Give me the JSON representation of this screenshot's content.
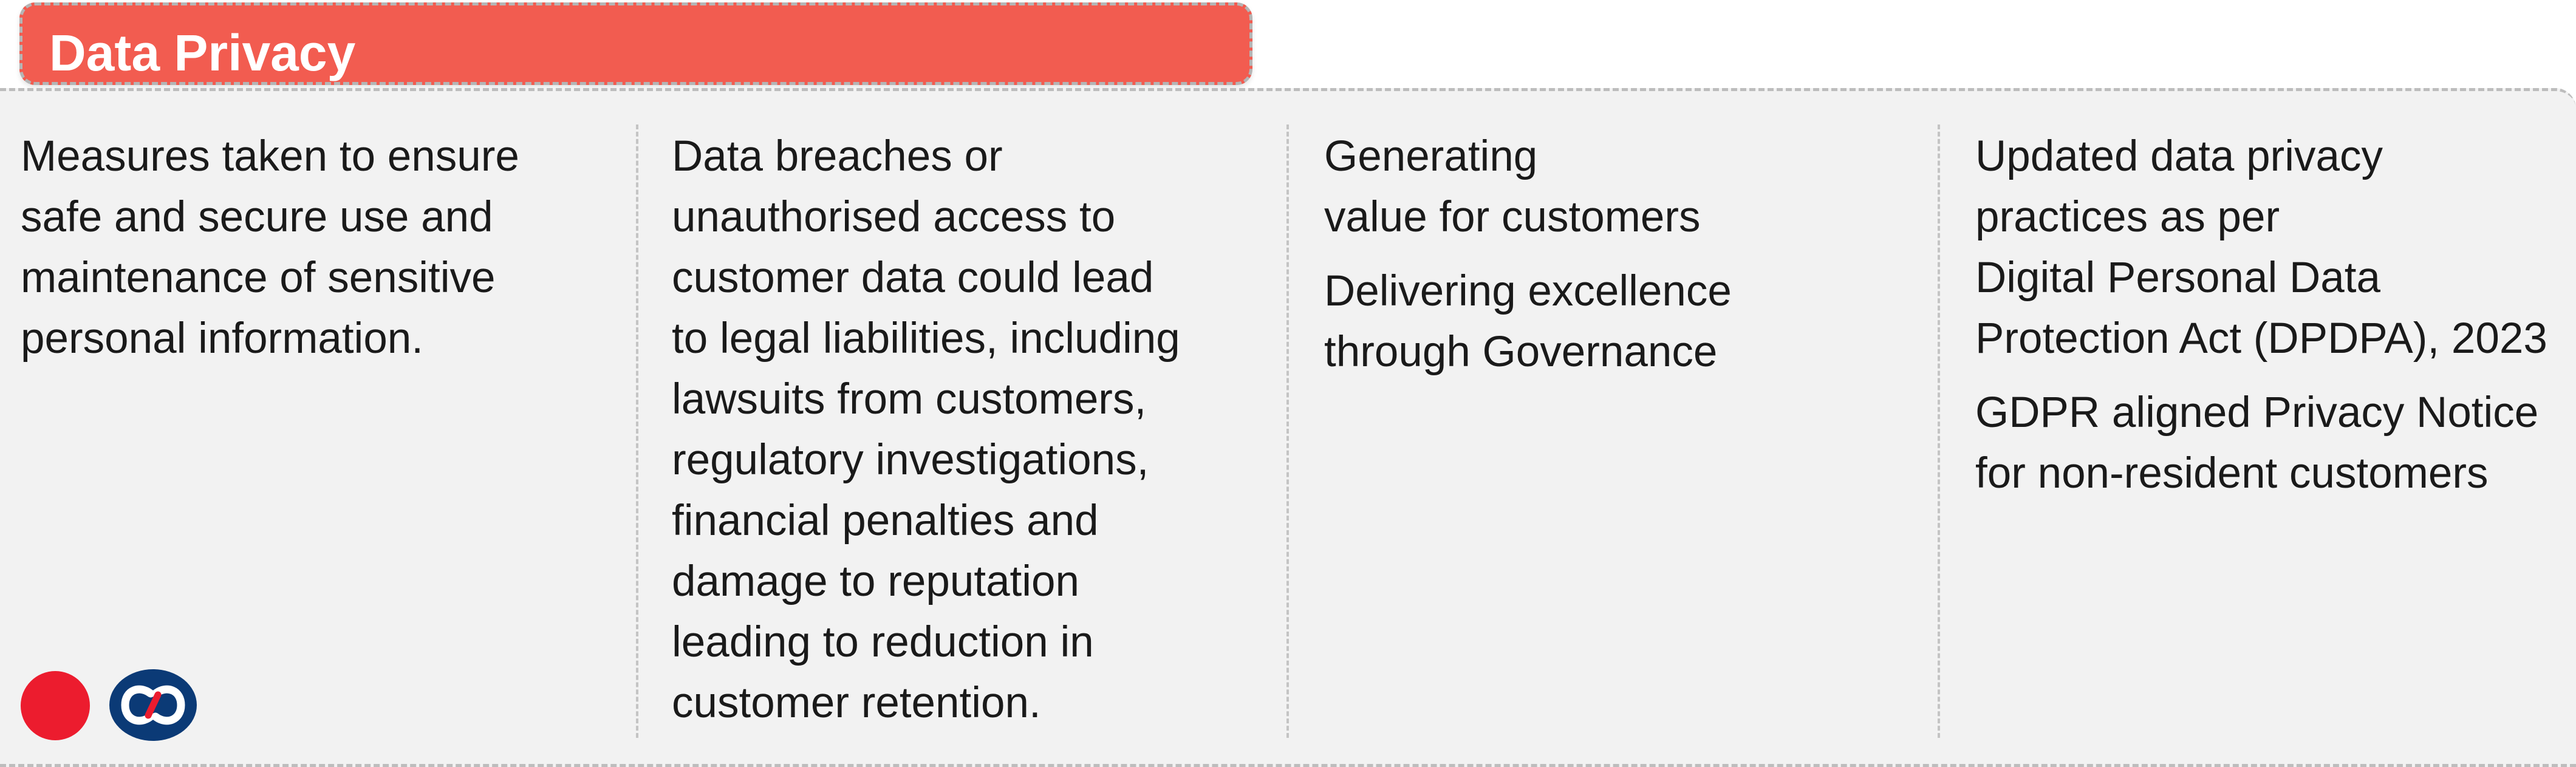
{
  "header": {
    "title": "Data Privacy"
  },
  "columns": [
    {
      "paragraphs": [
        [
          "Measures taken to ensure",
          "safe and secure use and",
          "maintenance of sensitive",
          "personal information."
        ]
      ]
    },
    {
      "paragraphs": [
        [
          "Data breaches or",
          "unauthorised access to",
          "customer data could lead",
          "to legal liabilities, including",
          "lawsuits from customers,",
          "regulatory investigations,",
          "financial penalties and",
          "damage to reputation",
          "leading to reduction in",
          "customer retention."
        ]
      ]
    },
    {
      "paragraphs": [
        [
          "Generating",
          "value for customers"
        ],
        [
          "Delivering excellence",
          "through Governance"
        ]
      ]
    },
    {
      "paragraphs": [
        [
          "Updated data privacy",
          "practices as per",
          "Digital Personal Data",
          "Protection Act (DPDPA), 2023"
        ],
        [
          "GDPR aligned Privacy Notice",
          "for non-resident customers"
        ]
      ]
    }
  ],
  "icons": {
    "dot": "red-circle-icon",
    "logo": "kotak-logo-icon"
  },
  "colors": {
    "header_bg": "#f25c50",
    "panel_bg": "#f2f2f2",
    "dot": "#ec1c2e",
    "logo": "#0b3a76"
  }
}
